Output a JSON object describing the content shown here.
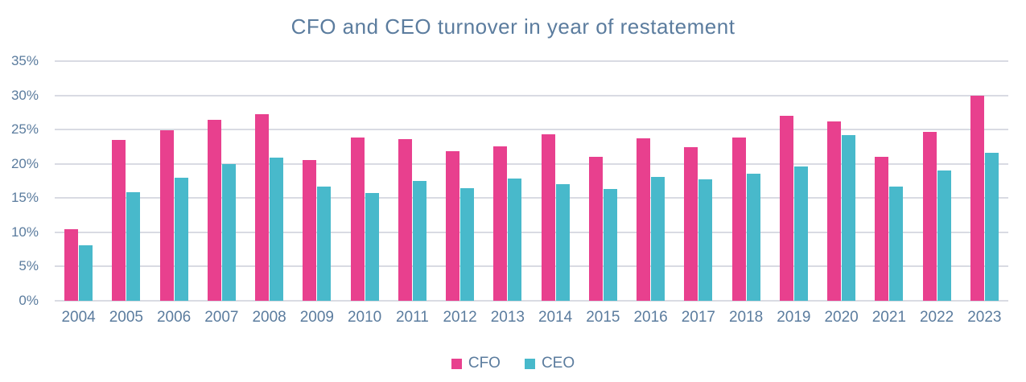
{
  "title": "CFO and CEO turnover in year of restatement",
  "colors": {
    "cfo": "#e8408e",
    "ceo": "#48b9cb",
    "text": "#5b7c9e",
    "gridline": "#d9dbe3",
    "background": "#ffffff"
  },
  "legend": {
    "items": [
      {
        "label": "CFO",
        "color": "#e8408e"
      },
      {
        "label": "CEO",
        "color": "#48b9cb"
      }
    ],
    "position": "bottom"
  },
  "y_axis": {
    "tick_labels": [
      "35%",
      "30%",
      "25%",
      "20%",
      "15%",
      "10%",
      "5%",
      "0%"
    ],
    "min": 0,
    "max": 35,
    "step": 5,
    "unit": "%"
  },
  "chart_data": {
    "type": "bar",
    "title": "CFO and CEO turnover in year of restatement",
    "categories": [
      "2004",
      "2005",
      "2006",
      "2007",
      "2008",
      "2009",
      "2010",
      "2011",
      "2012",
      "2013",
      "2014",
      "2015",
      "2016",
      "2017",
      "2018",
      "2019",
      "2020",
      "2021",
      "2022",
      "2023"
    ],
    "series": [
      {
        "name": "CFO",
        "color": "#e8408e",
        "values": [
          10.4,
          23.5,
          24.9,
          26.4,
          27.3,
          20.5,
          23.9,
          23.6,
          21.8,
          22.6,
          24.3,
          21.0,
          23.7,
          22.4,
          23.8,
          27.0,
          26.2,
          21.0,
          24.7,
          29.9
        ]
      },
      {
        "name": "CEO",
        "color": "#48b9cb",
        "values": [
          8.1,
          15.9,
          18.0,
          20.0,
          20.9,
          16.7,
          15.7,
          17.5,
          16.5,
          17.8,
          17.0,
          16.3,
          18.1,
          17.7,
          18.6,
          19.6,
          24.2,
          16.7,
          19.0,
          21.6
        ]
      }
    ],
    "xlabel": "",
    "ylabel": "",
    "ylim": [
      0,
      35
    ],
    "y_tick_step": 5,
    "value_format": "percent",
    "grid": true,
    "legend_position": "bottom"
  }
}
